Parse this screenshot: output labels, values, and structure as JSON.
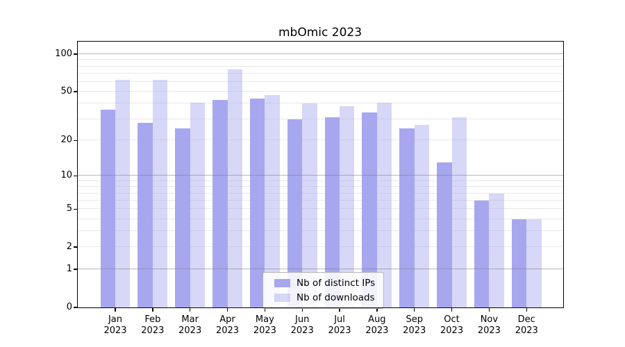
{
  "chart_data": {
    "type": "bar",
    "title": "mbOmic 2023",
    "x_categories": [
      "Jan",
      "Feb",
      "Mar",
      "Apr",
      "May",
      "Jun",
      "Jul",
      "Aug",
      "Sep",
      "Oct",
      "Nov",
      "Dec"
    ],
    "x_year": "2023",
    "series": [
      {
        "name": "Nb of distinct IPs",
        "color": "#a7a7ef",
        "values": [
          36,
          28,
          25,
          43,
          44,
          30,
          31,
          34,
          25,
          13,
          6,
          4
        ]
      },
      {
        "name": "Nb of downloads",
        "color": "rgba(167,167,240,0.45)",
        "values": [
          62,
          62,
          41,
          76,
          47,
          40,
          38,
          41,
          27,
          31,
          7,
          4
        ]
      }
    ],
    "yscale": "log1p",
    "ylim": [
      0,
      126
    ],
    "yticks": [
      0,
      1,
      2,
      5,
      10,
      20,
      50,
      100
    ],
    "ytick_labels": [
      "0",
      "1",
      "2",
      "5",
      "10",
      "20",
      "50",
      "100"
    ],
    "grid_minor": [
      2,
      3,
      4,
      5,
      6,
      7,
      8,
      9,
      20,
      30,
      40,
      50,
      60,
      70,
      80,
      90
    ],
    "grid_major": [
      1,
      10,
      100
    ],
    "legend_position": "lower-center",
    "grid": "on"
  }
}
